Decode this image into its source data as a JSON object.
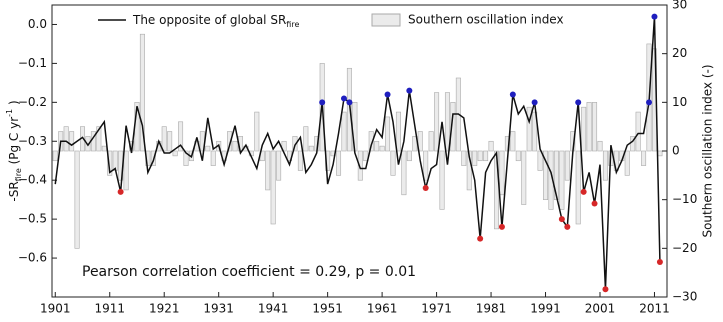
{
  "chart_data": {
    "type": "line_bar",
    "x": [
      1901,
      1902,
      1903,
      1904,
      1905,
      1906,
      1907,
      1908,
      1909,
      1910,
      1911,
      1912,
      1913,
      1914,
      1915,
      1916,
      1917,
      1918,
      1919,
      1920,
      1921,
      1922,
      1923,
      1924,
      1925,
      1926,
      1927,
      1928,
      1929,
      1930,
      1931,
      1932,
      1933,
      1934,
      1935,
      1936,
      1937,
      1938,
      1939,
      1940,
      1941,
      1942,
      1943,
      1944,
      1945,
      1946,
      1947,
      1948,
      1949,
      1950,
      1951,
      1952,
      1953,
      1954,
      1955,
      1956,
      1957,
      1958,
      1959,
      1960,
      1961,
      1962,
      1963,
      1964,
      1965,
      1966,
      1967,
      1968,
      1969,
      1970,
      1971,
      1972,
      1973,
      1974,
      1975,
      1976,
      1977,
      1978,
      1979,
      1980,
      1981,
      1982,
      1983,
      1984,
      1985,
      1986,
      1987,
      1988,
      1989,
      1990,
      1991,
      1992,
      1993,
      1994,
      1995,
      1996,
      1997,
      1998,
      1999,
      2000,
      2001,
      2002,
      2003,
      2004,
      2005,
      2006,
      2007,
      2008,
      2009,
      2010,
      2011,
      2012
    ],
    "xlim": [
      1900.4,
      2013.3
    ],
    "xticks": [
      1901,
      1911,
      1921,
      1931,
      1941,
      1951,
      1961,
      1971,
      1981,
      1991,
      2001,
      2011
    ],
    "ylim": [
      -0.7,
      0.05
    ],
    "yticks": [
      {
        "value": 0.0,
        "label": "0.0"
      },
      {
        "value": -0.1,
        "label": "−0.1"
      },
      {
        "value": -0.2,
        "label": "−0.2"
      },
      {
        "value": -0.3,
        "label": "−0.3"
      },
      {
        "value": -0.4,
        "label": "−0.4"
      },
      {
        "value": -0.5,
        "label": "−0.5"
      },
      {
        "value": -0.6,
        "label": "−0.6"
      }
    ],
    "ylabel": [
      "-SR",
      "fire",
      " (Pg C yr",
      "-1",
      " )"
    ],
    "y2lim": [
      -30,
      30
    ],
    "y2ticks": [
      30,
      20,
      10,
      0,
      {
        "value": -10,
        "label": "−10"
      },
      {
        "value": -20,
        "label": "−20"
      },
      {
        "value": -30,
        "label": "−30"
      }
    ],
    "y2label": "Southern oscillation index (-)",
    "annotation": "Pearson correlation coefficient = 0.29, p = 0.01",
    "series": [
      {
        "name": "The opposite of global SR",
        "name_sub": "fire",
        "type": "line",
        "color": "#111111",
        "values": [
          -0.41,
          -0.3,
          -0.3,
          -0.31,
          -0.3,
          -0.29,
          -0.31,
          -0.29,
          -0.27,
          -0.25,
          -0.38,
          -0.37,
          -0.43,
          -0.26,
          -0.33,
          -0.21,
          -0.26,
          -0.38,
          -0.35,
          -0.3,
          -0.33,
          -0.33,
          -0.32,
          -0.31,
          -0.33,
          -0.34,
          -0.29,
          -0.35,
          -0.24,
          -0.32,
          -0.31,
          -0.36,
          -0.31,
          -0.26,
          -0.33,
          -0.31,
          -0.34,
          -0.37,
          -0.31,
          -0.28,
          -0.32,
          -0.3,
          -0.33,
          -0.36,
          -0.31,
          -0.29,
          -0.38,
          -0.36,
          -0.33,
          -0.2,
          -0.41,
          -0.36,
          -0.28,
          -0.19,
          -0.2,
          -0.33,
          -0.37,
          -0.37,
          -0.31,
          -0.27,
          -0.29,
          -0.18,
          -0.25,
          -0.36,
          -0.3,
          -0.17,
          -0.26,
          -0.35,
          -0.42,
          -0.37,
          -0.36,
          -0.25,
          -0.36,
          -0.23,
          -0.23,
          -0.24,
          -0.34,
          -0.4,
          -0.55,
          -0.38,
          -0.35,
          -0.33,
          -0.52,
          -0.35,
          -0.18,
          -0.23,
          -0.21,
          -0.25,
          -0.2,
          -0.32,
          -0.35,
          -0.38,
          -0.44,
          -0.5,
          -0.52,
          -0.33,
          -0.2,
          -0.43,
          -0.38,
          -0.46,
          -0.36,
          -0.68,
          -0.31,
          -0.38,
          -0.35,
          -0.31,
          -0.3,
          -0.28,
          -0.28,
          -0.2,
          0.02,
          -0.61
        ],
        "point_colors": [
          null,
          null,
          null,
          null,
          null,
          null,
          null,
          null,
          null,
          null,
          null,
          null,
          "#d62728",
          null,
          null,
          null,
          null,
          null,
          null,
          null,
          null,
          null,
          null,
          null,
          null,
          null,
          null,
          null,
          null,
          null,
          null,
          null,
          null,
          null,
          null,
          null,
          null,
          null,
          null,
          null,
          null,
          null,
          null,
          null,
          null,
          null,
          null,
          null,
          null,
          "#1f1fbf",
          null,
          null,
          null,
          "#1f1fbf",
          "#1f1fbf",
          null,
          null,
          null,
          null,
          null,
          null,
          "#1f1fbf",
          null,
          null,
          null,
          "#1f1fbf",
          null,
          null,
          "#d62728",
          null,
          null,
          null,
          null,
          null,
          null,
          null,
          null,
          null,
          "#d62728",
          null,
          null,
          null,
          "#d62728",
          null,
          "#1f1fbf",
          null,
          null,
          null,
          "#1f1fbf",
          null,
          null,
          null,
          null,
          "#d62728",
          "#d62728",
          null,
          "#1f1fbf",
          "#d62728",
          null,
          "#d62728",
          null,
          "#d62728",
          null,
          null,
          null,
          null,
          null,
          null,
          null,
          "#1f1fbf",
          "#1f1fbf",
          "#d62728"
        ]
      },
      {
        "name": "Southern oscillation index",
        "type": "bar",
        "axis": "y2",
        "color": "#ebebeb",
        "edge": "#aaaaaa",
        "values": [
          -2,
          4,
          5,
          4,
          -20,
          5,
          3,
          4,
          5,
          1,
          -5,
          -4,
          -6,
          -8,
          2,
          10,
          24,
          -3,
          -3,
          2,
          5,
          4,
          -1,
          6,
          -3,
          -2,
          2,
          4,
          1,
          -3,
          2,
          -2,
          4,
          2,
          3,
          1,
          -1,
          8,
          -2,
          -8,
          -15,
          -6,
          2,
          -2,
          3,
          -4,
          5,
          1,
          3,
          18,
          -4,
          -1,
          -5,
          8,
          17,
          10,
          -6,
          -2,
          4,
          2,
          1,
          7,
          -5,
          8,
          -9,
          -2,
          3,
          4,
          -6,
          4,
          12,
          -12,
          12,
          10,
          15,
          -3,
          -8,
          -3,
          -2,
          -2,
          2,
          -16,
          -9,
          3,
          4,
          -2,
          -11,
          9,
          8,
          -4,
          -10,
          -12,
          -10,
          -12,
          -6,
          4,
          -15,
          9,
          10,
          10,
          2,
          -6,
          -3,
          -4,
          -2,
          -5,
          3,
          8,
          -3,
          22,
          21,
          -1
        ]
      }
    ]
  }
}
